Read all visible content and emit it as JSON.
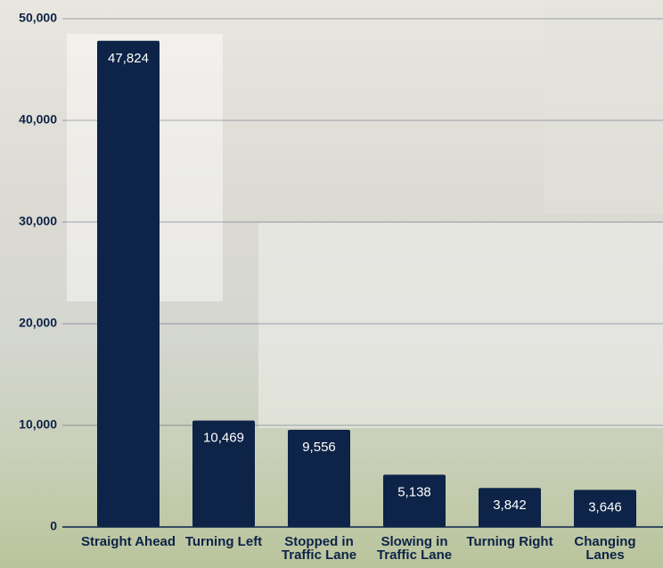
{
  "chart_data": {
    "type": "bar",
    "categories": [
      "Straight Ahead",
      "Turning Left",
      "Stopped in Traffic Lane",
      "Slowing in Traffic Lane",
      "Turning Right",
      "Changing Lanes"
    ],
    "values": [
      47824,
      10469,
      9556,
      5138,
      3842,
      3646
    ],
    "value_labels": [
      "47,824",
      "10,469",
      "9,556",
      "5,138",
      "3,842",
      "3,646"
    ],
    "color": "#0d2347",
    "ylim": [
      0,
      50000
    ],
    "yticks": [
      0,
      {
        "value": 10000,
        "label": "10,000"
      },
      {
        "value": 20000,
        "label": "20,000"
      },
      {
        "value": 30000,
        "label": "30,000"
      },
      {
        "value": 40000,
        "label": "40,000"
      },
      {
        "value": 50000,
        "label": "50,000"
      }
    ],
    "grid": true
  }
}
